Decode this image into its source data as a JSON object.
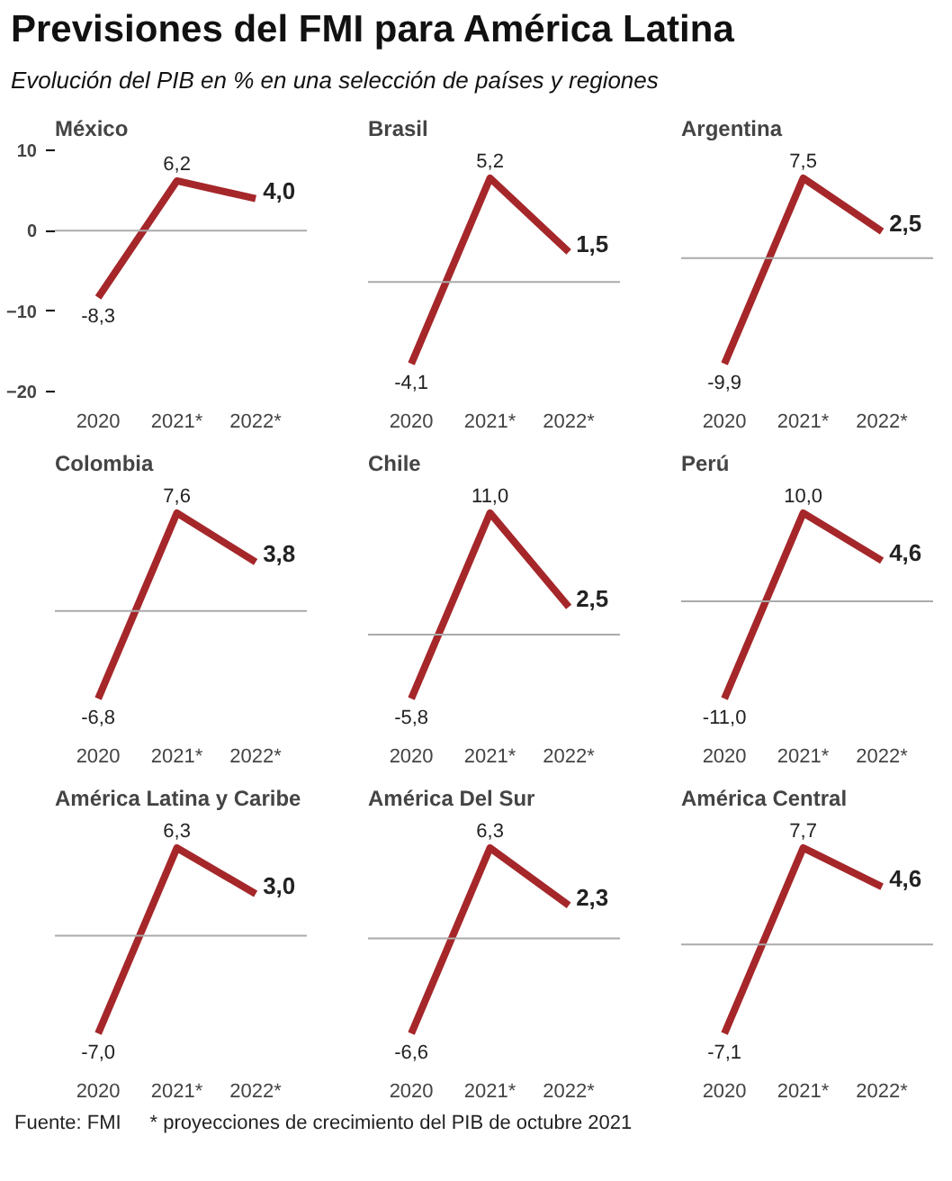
{
  "chart_data": [
    {
      "type": "line",
      "title": "México",
      "categories": [
        "2020",
        "2021*",
        "2022*"
      ],
      "values": [
        -8.3,
        6.2,
        4.0
      ],
      "value_labels": [
        "-8,3",
        "6,2",
        "4,0"
      ],
      "color": "#a5272a",
      "ylim": [
        -20,
        10
      ],
      "yticks": [
        10,
        0,
        -10,
        -20
      ],
      "ref_lines": [
        {
          "axis": "y",
          "value": 0
        }
      ],
      "annotations": [
        "Previsiones del FMI para América Latina",
        "Evolución del PIB en % en una selección de países y regiones"
      ]
    },
    {
      "type": "line",
      "title": "Brasil",
      "categories": [
        "2020",
        "2021*",
        "2022*"
      ],
      "values": [
        -4.1,
        5.2,
        1.5
      ],
      "value_labels": [
        "-4,1",
        "5,2",
        "1,5"
      ],
      "color": "#a5272a",
      "tick_labels": "x",
      "ref_lines": [
        {
          "axis": "y",
          "value": 0
        }
      ]
    },
    {
      "type": "line",
      "title": "Argentina",
      "categories": [
        "2020",
        "2021*",
        "2022*"
      ],
      "values": [
        -9.9,
        7.5,
        2.5
      ],
      "value_labels": [
        "-9,9",
        "7,5",
        "2,5"
      ],
      "color": "#a5272a",
      "tick_labels": "x",
      "ref_lines": [
        {
          "axis": "y",
          "value": 0
        }
      ]
    },
    {
      "type": "line",
      "title": "Colombia",
      "categories": [
        "2020",
        "2021*",
        "2022*"
      ],
      "values": [
        -6.8,
        7.6,
        3.8
      ],
      "value_labels": [
        "-6,8",
        "7,6",
        "3,8"
      ],
      "color": "#a5272a",
      "tick_labels": "x",
      "ref_lines": [
        {
          "axis": "y",
          "value": 0
        }
      ]
    },
    {
      "type": "line",
      "title": "Chile",
      "categories": [
        "2020",
        "2021*",
        "2022*"
      ],
      "values": [
        -5.8,
        11.0,
        2.5
      ],
      "value_labels": [
        "-5,8",
        "11,0",
        "2,5"
      ],
      "color": "#a5272a",
      "tick_labels": "x",
      "ref_lines": [
        {
          "axis": "y",
          "value": 0
        }
      ]
    },
    {
      "type": "line",
      "title": "Perú",
      "categories": [
        "2020",
        "2021*",
        "2022*"
      ],
      "values": [
        -11.0,
        10.0,
        4.6
      ],
      "value_labels": [
        "-11,0",
        "10,0",
        "4,6"
      ],
      "color": "#a5272a",
      "tick_labels": "x",
      "ref_lines": [
        {
          "axis": "y",
          "value": 0
        }
      ]
    },
    {
      "type": "line",
      "title": "América Latina y Caribe",
      "categories": [
        "2020",
        "2021*",
        "2022*"
      ],
      "values": [
        -7.0,
        6.3,
        3.0
      ],
      "value_labels": [
        "-7,0",
        "6,3",
        "3,0"
      ],
      "color": "#a5272a",
      "tick_labels": "x",
      "ref_lines": [
        {
          "axis": "y",
          "value": 0
        }
      ]
    },
    {
      "type": "line",
      "title": "América Del Sur",
      "categories": [
        "2020",
        "2021*",
        "2022*"
      ],
      "values": [
        -6.6,
        6.3,
        2.3
      ],
      "value_labels": [
        "-6,6",
        "6,3",
        "2,3"
      ],
      "color": "#a5272a",
      "tick_labels": "x",
      "ref_lines": [
        {
          "axis": "y",
          "value": 0
        }
      ]
    },
    {
      "type": "line",
      "title": "América Central",
      "categories": [
        "2020",
        "2021*",
        "2022*"
      ],
      "values": [
        -7.1,
        7.7,
        4.6
      ],
      "value_labels": [
        "-7,1",
        "7,7",
        "4,6"
      ],
      "color": "#a5272a",
      "tick_labels": "x",
      "ref_lines": [
        {
          "axis": "y",
          "value": 0
        }
      ],
      "annotations": [
        "Fuente: FMI",
        "* proyecciones de crecimiento del PIB de octubre 2021"
      ]
    }
  ]
}
